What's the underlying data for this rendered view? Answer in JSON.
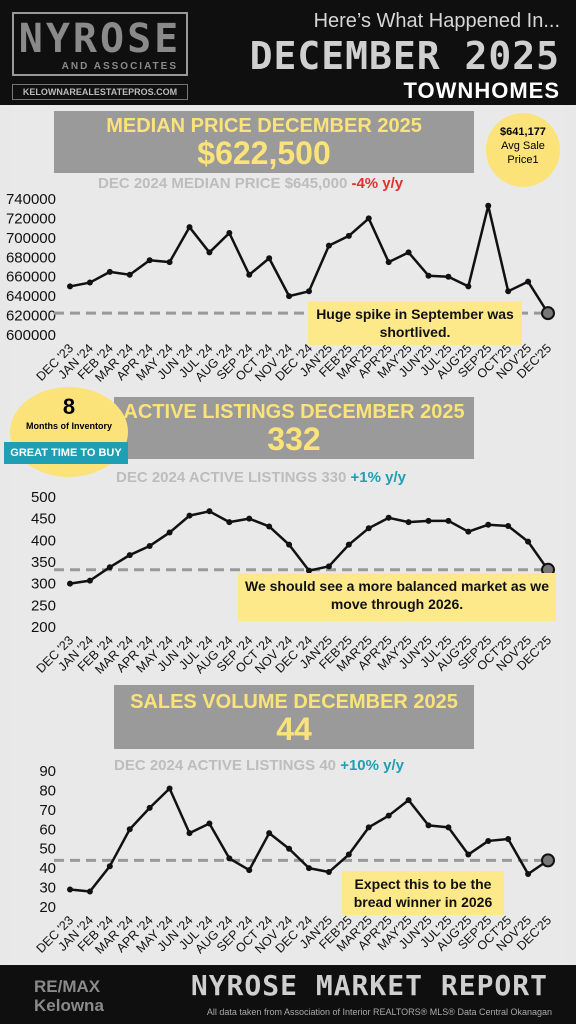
{
  "header": {
    "brand_name": "NYROSE",
    "brand_sub": "AND ASSOCIATES",
    "brand_url": "KELOWNAREALESTATEPROS.COM",
    "intro": "Here’s What Happened In...",
    "month": "DECEMBER 2025",
    "property_type": "TOWNHOMES"
  },
  "sections": [
    {
      "title": "MEDIAN PRICE DECEMBER 2025",
      "value": "$622,500",
      "comparison_label": "DEC 2024 MEDIAN PRICE $645,000",
      "comparison_change": "-4% y/y",
      "badge_line1": "$641,177",
      "badge_line2": "Avg Sale",
      "badge_line3": "Price1",
      "note": "Huge spike in September was shortlived."
    },
    {
      "title": "ACTIVE LISTINGS DECEMBER 2025",
      "value": "332",
      "comparison_label": "DEC 2024 ACTIVE LISTINGS 330",
      "comparison_change": "+1% y/y",
      "badge_number": "8",
      "badge_label": "Months of Inventory",
      "badge_tag": "GREAT TIME TO BUY",
      "note": "We should see a more balanced market as we move through 2026."
    },
    {
      "title": "SALES VOLUME DECEMBER 2025",
      "value": "44",
      "comparison_label": "DEC 2024 ACTIVE LISTINGS 40",
      "comparison_change": "+10% y/y",
      "note": "Expect this to be the bread winner in 2026"
    }
  ],
  "footer": {
    "brokerage_line1": "RE/MAX",
    "brokerage_line2": "Kelowna",
    "report_title": "NYROSE MARKET REPORT",
    "source": "All data taken from Association of Interior REALTORS® MLS® Data Central Okanagan"
  },
  "colors": {
    "banner_text": "#fbe37a",
    "banner_bg": "#9a9a9a",
    "negative": "#e03131",
    "positive": "#1f9fb3",
    "note_bg": "#fde88a",
    "line": "#111111",
    "reference_line": "#999999"
  },
  "chart_data": [
    {
      "type": "line",
      "categories": [
        "DEC '23",
        "JAN '24",
        "FEB '24",
        "MAR '24",
        "APR '24",
        "MAY '24",
        "JUN '24",
        "JUL '24",
        "AUG '24",
        "SEP '24",
        "OCT '24",
        "NOV '24",
        "DEC '24",
        "JAN'25",
        "FEB'25",
        "MAR'25",
        "APR'25",
        "MAY'25",
        "JUN'25",
        "JUL'25",
        "AUG'25",
        "SEP'25",
        "OCT'25",
        "NOV'25",
        "DEC'25"
      ],
      "values": [
        650000,
        654000,
        665000,
        662000,
        677000,
        675000,
        711000,
        685000,
        705000,
        662000,
        679000,
        640000,
        645000,
        692000,
        702000,
        720000,
        675000,
        685000,
        661000,
        660000,
        650000,
        733000,
        645000,
        655000,
        622500
      ],
      "y_ticks": [
        600000,
        620000,
        640000,
        660000,
        680000,
        700000,
        720000,
        740000
      ],
      "ylim": [
        600000,
        740000
      ],
      "reference_value": 622500
    },
    {
      "type": "line",
      "categories": [
        "DEC '23",
        "JAN '24",
        "FEB '24",
        "MAR '24",
        "APR '24",
        "MAY '24",
        "JUN '24",
        "JUL '24",
        "AUG '24",
        "SEP '24",
        "OCT '24",
        "NOV '24",
        "DEC '24",
        "JAN'25",
        "FEB'25",
        "MAR'25",
        "APR'25",
        "MAY'25",
        "JUN'25",
        "JUL'25",
        "AUG'25",
        "SEP'25",
        "OCT'25",
        "NOV'25",
        "DEC'25"
      ],
      "values": [
        300,
        307,
        338,
        366,
        387,
        418,
        457,
        467,
        442,
        450,
        432,
        390,
        330,
        340,
        390,
        428,
        452,
        442,
        445,
        445,
        420,
        436,
        433,
        397,
        332
      ],
      "y_ticks": [
        200,
        250,
        300,
        350,
        400,
        450,
        500
      ],
      "ylim": [
        200,
        500
      ],
      "reference_value": 332
    },
    {
      "type": "line",
      "categories": [
        "DEC '23",
        "JAN '24",
        "FEB '24",
        "MAR '24",
        "APR '24",
        "MAY '24",
        "JUN '24",
        "JUL '24",
        "AUG '24",
        "SEP '24",
        "OCT '24",
        "NOV '24",
        "DEC '24",
        "JAN'25",
        "FEB'25",
        "MAR'25",
        "APR'25",
        "MAY'25",
        "JUN'25",
        "JUL'25",
        "AUG'25",
        "SEP'25",
        "OCT'25",
        "NOV'25",
        "DEC'25"
      ],
      "values": [
        29,
        28,
        41,
        60,
        71,
        81,
        58,
        63,
        45,
        39,
        58,
        50,
        40,
        38,
        47,
        61,
        67,
        75,
        62,
        61,
        47,
        54,
        55,
        37,
        44
      ],
      "y_ticks": [
        20,
        30,
        40,
        50,
        60,
        70,
        80,
        90
      ],
      "ylim": [
        20,
        90
      ],
      "reference_value": 44
    }
  ]
}
